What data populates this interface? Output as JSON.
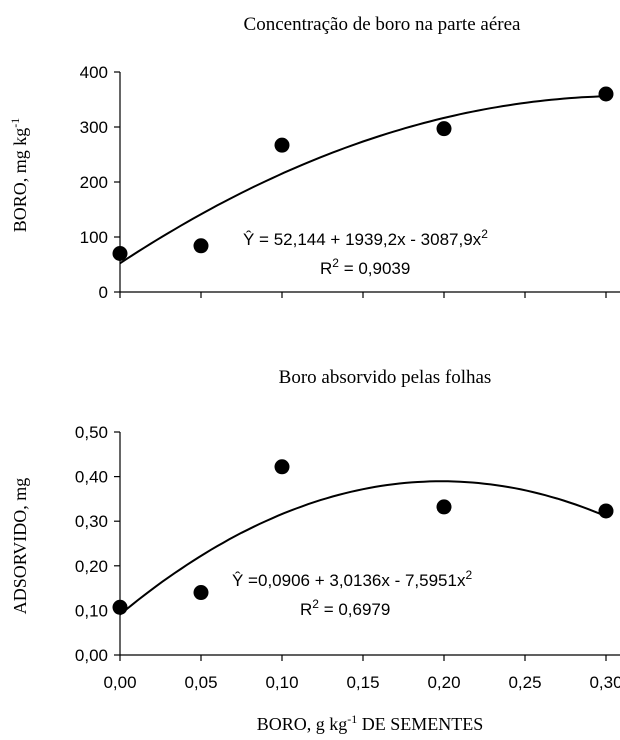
{
  "chart_data": [
    {
      "type": "scatter",
      "title": "Concentração de boro na parte aérea",
      "ylabel_main": "BORO, mg kg",
      "ylabel_sup": "-1",
      "ylim": [
        0,
        400
      ],
      "yticks": [
        0,
        100,
        200,
        300,
        400
      ],
      "ytick_labels": [
        "0",
        "100",
        "200",
        "300",
        "400"
      ],
      "xlim": [
        0,
        0.3
      ],
      "xticks": [
        0,
        0.05,
        0.1,
        0.15,
        0.2,
        0.25,
        0.3
      ],
      "x": [
        0.0,
        0.05,
        0.1,
        0.2,
        0.3
      ],
      "y": [
        70,
        84,
        267,
        297,
        360
      ],
      "fit": {
        "a": 52.144,
        "b": 1939.2,
        "c": -3087.9
      },
      "equation_main": "Ŷ = 52,144 + 1939,2x - 3087,9x",
      "equation_sup": "2",
      "r2_prefix": "R",
      "r2_sup": "2",
      "r2_value": " = 0,9039",
      "colors": {
        "points": "#000000",
        "curve": "#000000"
      }
    },
    {
      "type": "scatter",
      "title": "Boro absorvido pelas folhas",
      "ylabel": "ADSORVIDO, mg",
      "ylim": [
        0,
        0.5
      ],
      "yticks": [
        0,
        0.1,
        0.2,
        0.3,
        0.4,
        0.5
      ],
      "ytick_labels": [
        "0,00",
        "0,10",
        "0,20",
        "0,30",
        "0,40",
        "0,50"
      ],
      "xlim": [
        0,
        0.3
      ],
      "xticks": [
        0,
        0.05,
        0.1,
        0.15,
        0.2,
        0.25,
        0.3
      ],
      "xtick_labels": [
        "0,00",
        "0,05",
        "0,10",
        "0,15",
        "0,20",
        "0,25",
        "0,30"
      ],
      "x": [
        0.0,
        0.05,
        0.1,
        0.2,
        0.3
      ],
      "y": [
        0.107,
        0.14,
        0.422,
        0.332,
        0.323
      ],
      "fit": {
        "a": 0.0906,
        "b": 3.0136,
        "c": -7.5951
      },
      "equation_main": "Ŷ =0,0906 + 3,0136x - 7,5951x",
      "equation_sup": "2",
      "r2_prefix": "R",
      "r2_sup": "2",
      "r2_value": " = 0,6979",
      "xlabel_part1": "BORO, g kg",
      "xlabel_sup": "-1",
      "xlabel_part2": " DE SEMENTES",
      "colors": {
        "points": "#000000",
        "curve": "#000000"
      }
    }
  ]
}
